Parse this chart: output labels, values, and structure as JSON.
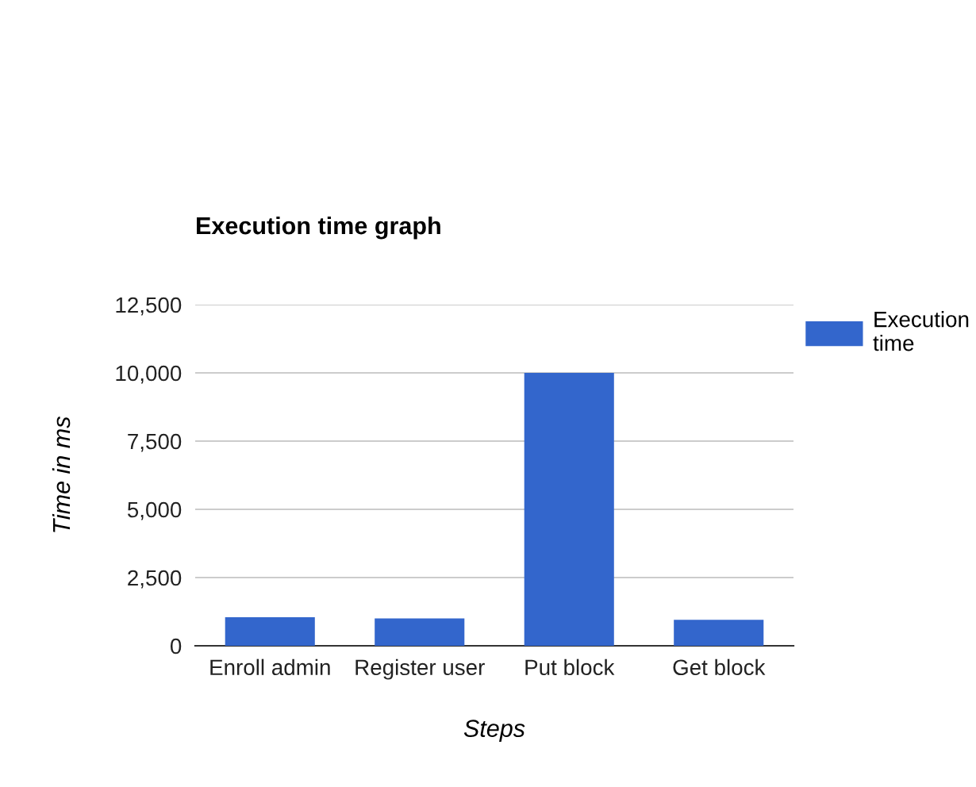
{
  "chart_data": {
    "type": "bar",
    "title": "Execution time graph",
    "xlabel": "Steps",
    "ylabel": "Time in ms",
    "categories": [
      "Enroll admin",
      "Register user",
      "Put block",
      "Get block"
    ],
    "series": [
      {
        "name": "Execution time",
        "color": "#3366cc",
        "values": [
          1050,
          1000,
          10000,
          950
        ]
      }
    ],
    "ylim": [
      0,
      12500
    ],
    "yticks": [
      {
        "value": 0,
        "label": "0"
      },
      {
        "value": 2500,
        "label": "2,500"
      },
      {
        "value": 5000,
        "label": "5,000"
      },
      {
        "value": 7500,
        "label": "7,500"
      },
      {
        "value": 10000,
        "label": "10,000"
      },
      {
        "value": 12500,
        "label": "12,500"
      }
    ],
    "grid": "y",
    "legend": "top right"
  }
}
